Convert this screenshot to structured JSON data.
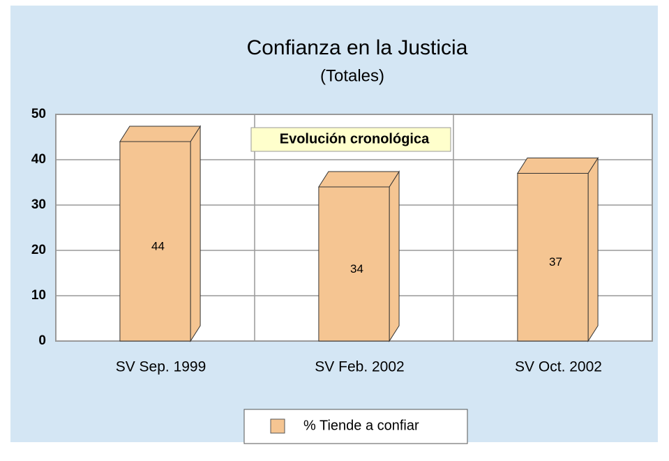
{
  "chart_data": {
    "type": "bar",
    "title": "Confianza en la Justicia",
    "subtitle": "(Totales)",
    "annotation": "Evolución cronológica",
    "categories": [
      "SV Sep. 1999",
      "SV Feb. 2002",
      "SV Oct. 2002"
    ],
    "series": [
      {
        "name": "% Tiende a confiar",
        "color": "#f5c592",
        "values": [
          44,
          34,
          37
        ]
      }
    ],
    "ylim": [
      0,
      50
    ],
    "yticks": [
      0,
      10,
      20,
      30,
      40,
      50
    ],
    "grid": true
  }
}
